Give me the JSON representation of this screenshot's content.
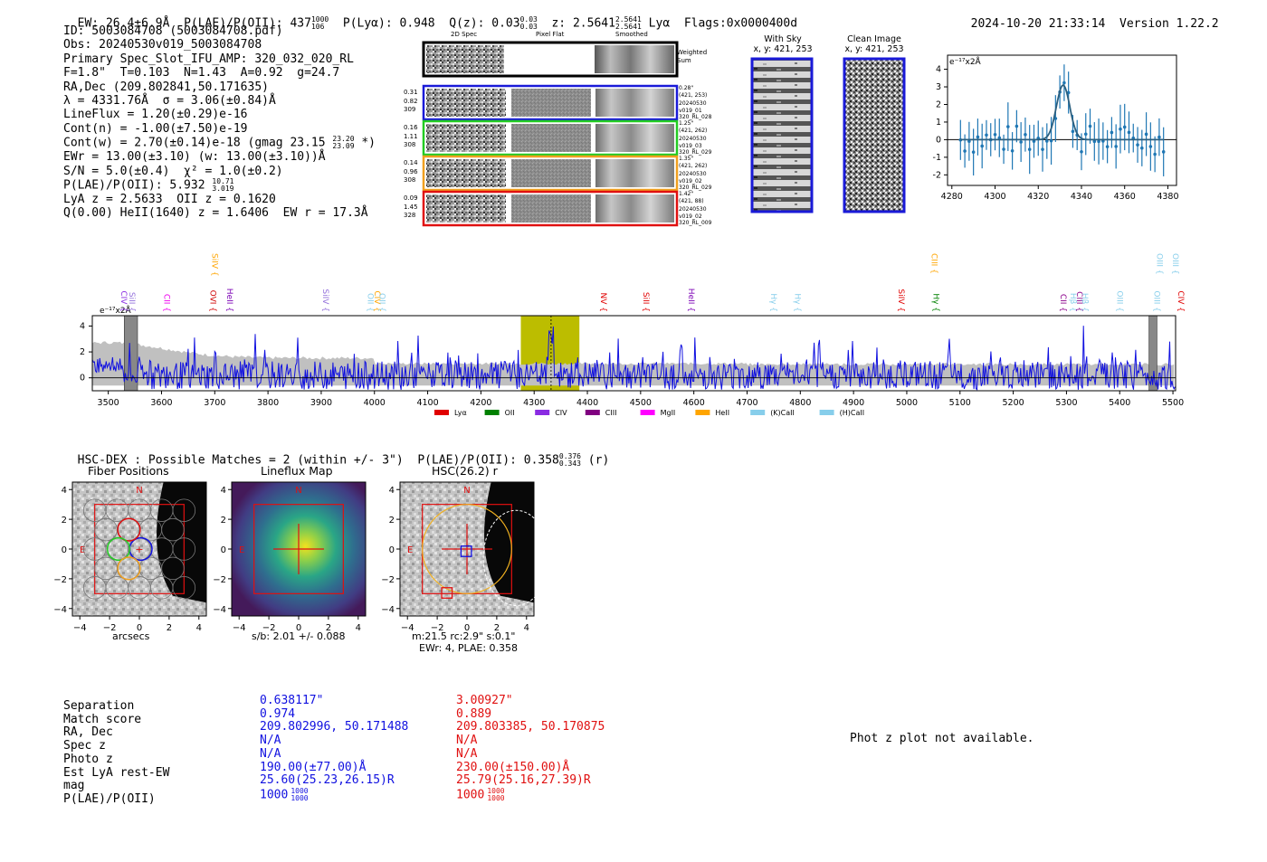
{
  "header": {
    "ew": "EW: 26.4±6.9Å",
    "plae": "P(LAE)/P(OII): 437",
    "plae_hi": "1000",
    "plae_lo": "106",
    "plya": "P(Lyα): 0.948",
    "qz": "Q(z): 0.03",
    "qz_hi": "0.03",
    "qz_lo": "0.03",
    "z": "z: 2.5641",
    "z_hi": "2.5641",
    "z_lo": "2.5641",
    "line": "Lyα",
    "flags": "Flags:0x0000400d",
    "datetime": "2024-10-20 21:33:14",
    "version": "Version 1.22.2"
  },
  "info": {
    "id": "ID: 5003084708 (5003084708.pdf)",
    "obs": "Obs: 20240530v019_5003084708",
    "primary": "Primary Spec_Slot_IFU_AMP: 320_032_020_RL",
    "params": "F=1.8\"  T=0.103  N=1.43  A=0.92  g=24.7",
    "radec": "RA,Dec (209.802841,50.171635)",
    "lambda": "λ = 4331.76Å  σ = 3.06(±0.84)Å",
    "lineflux": "LineFlux = 1.20(±0.29)e-16",
    "contn": "Cont(n) = -1.00(±7.50)e-19",
    "contw": "Cont(w) = 2.70(±0.14)e-18 (gmag 23.15",
    "contw_hi": "23.20",
    "contw_lo": "23.09",
    "contw_end": "*)",
    "ewr": "EWr = 13.00(±3.10) (w: 13.00(±3.10))Å",
    "sn": "S/N = 5.0(±0.4)  χ² = 1.0(±0.2)",
    "plae": "P(LAE)/P(OII): 5.932",
    "plae_hi": "10.71",
    "plae_lo": "3.019",
    "lya": "LyA z = 2.5633  OII z = 0.1620",
    "q": "Q(0.00) HeII(1640) z = 1.6406  EW r = 17.3Å"
  },
  "cutouts": {
    "col_2d": "2D Spec",
    "col_flat": "Pixel Flat",
    "col_smooth": "Smoothed",
    "sum_label_1": "Weighted",
    "sum_label_2": "Sum",
    "rows": [
      {
        "l1": "0.31",
        "l2": "0.82",
        "l3": "309",
        "r1": "0.28\"",
        "r2": "(421, 253)",
        "r3": "20240530",
        "r4": "v019_01",
        "r5": "320_RL_028",
        "color": "#1a1ad8"
      },
      {
        "l1": "0.16",
        "l2": "1.11",
        "l3": "308",
        "r1": "1.25\"",
        "r2": "(421, 262)",
        "r3": "20240530",
        "r4": "v019_03",
        "r5": "320_RL_029",
        "color": "#22cc22"
      },
      {
        "l1": "0.14",
        "l2": "0.96",
        "l3": "308",
        "r1": "1.35\"",
        "r2": "(421, 262)",
        "r3": "20240530",
        "r4": "v019_02",
        "r5": "320_RL_029",
        "color": "#f0a020"
      },
      {
        "l1": "0.09",
        "l2": "1.45",
        "l3": "328",
        "r1": "1.42\"",
        "r2": "(421, 88)",
        "r3": "20240530",
        "r4": "v019_02",
        "r5": "320_RL_009",
        "color": "#e01010"
      }
    ]
  },
  "sky": {
    "with_sky": "With Sky",
    "with_sky_xy": "x, y: 421, 253",
    "clean": "Clean Image",
    "clean_xy": "x, y: 421, 253"
  },
  "zoom": {
    "ylabel": "e⁻¹⁷x2Å",
    "xticks": [
      "4280",
      "4300",
      "4320",
      "4340",
      "4360",
      "4380"
    ],
    "yticks": [
      "4",
      "3",
      "2",
      "1",
      "0",
      "-1",
      "-2"
    ],
    "color": "#1f77b4"
  },
  "spectrum": {
    "ylabel": "e⁻¹⁷x2Å",
    "xticks": [
      "3500",
      "3600",
      "3700",
      "3800",
      "3900",
      "4000",
      "4100",
      "4200",
      "4300",
      "4400",
      "4500",
      "4600",
      "4700",
      "4800",
      "4900",
      "5000",
      "5100",
      "5200",
      "5300",
      "5400",
      "5500"
    ],
    "yticks": [
      "4",
      "2",
      "0"
    ],
    "line_labels_low": [
      {
        "t": "CIV",
        "w": 3519,
        "c": "#8a2be2"
      },
      {
        "t": "SiII",
        "w": 3535,
        "c": "#9370db"
      },
      {
        "t": "CII",
        "w": 3600,
        "c": "#ee00ee"
      },
      {
        "t": "OVI",
        "w": 3687,
        "c": "#d00000"
      },
      {
        "t": "HeII",
        "w": 3718,
        "c": "#7b00b4"
      },
      {
        "t": "SiIV",
        "w": 3898,
        "c": "#9370db"
      },
      {
        "t": "OII",
        "w": 3983,
        "c": "#87ceeb"
      },
      {
        "t": "CIV",
        "w": 3995,
        "c": "#ffa500"
      },
      {
        "t": "OII",
        "w": 4005,
        "c": "#87ceeb"
      },
      {
        "t": "NV",
        "w": 4420,
        "c": "#e00000"
      },
      {
        "t": "SiII",
        "w": 4500,
        "c": "#e00000"
      },
      {
        "t": "HeII",
        "w": 4585,
        "c": "#7b00b4"
      },
      {
        "t": "Hγ",
        "w": 4740,
        "c": "#87ceeb"
      },
      {
        "t": "Hγ",
        "w": 4785,
        "c": "#87ceeb"
      },
      {
        "t": "SiIV",
        "w": 4980,
        "c": "#e00000"
      },
      {
        "t": "Hγ",
        "w": 5045,
        "c": "#008000"
      },
      {
        "t": "CII",
        "w": 5284,
        "c": "#8b008b"
      },
      {
        "t": "Hβ",
        "w": 5303,
        "c": "#87ceeb"
      },
      {
        "t": "CIII",
        "w": 5315,
        "c": "#8b008b"
      },
      {
        "t": "Hβ",
        "w": 5325,
        "c": "#87ceeb"
      },
      {
        "t": "OIII",
        "w": 5390,
        "c": "#87ceeb"
      },
      {
        "t": "OIII",
        "w": 5460,
        "c": "#87ceeb"
      },
      {
        "t": "CIV",
        "w": 5505,
        "c": "#e00000"
      }
    ],
    "line_labels_high": [
      {
        "t": "SiIV",
        "w": 3690,
        "c": "#ffa500"
      },
      {
        "t": "CIII",
        "w": 5042,
        "c": "#ffa500"
      },
      {
        "t": "OIII",
        "w": 5465,
        "c": "#87ceeb"
      },
      {
        "t": "OIII",
        "w": 5495,
        "c": "#87ceeb"
      }
    ],
    "legend": [
      {
        "label": "Lyα",
        "color": "#e00000"
      },
      {
        "label": "OII",
        "color": "#008000"
      },
      {
        "label": "CIV",
        "color": "#8a2be2"
      },
      {
        "label": "CIII",
        "color": "#800080"
      },
      {
        "label": "MgII",
        "color": "#ff00ff"
      },
      {
        "label": "HeII",
        "color": "#ffa500"
      },
      {
        "label": "(K)CaII",
        "color": "#87ceeb"
      },
      {
        "label": "(H)CaII",
        "color": "#87ceeb"
      }
    ]
  },
  "hsc": {
    "title": "HSC-DEX : Possible Matches = 2 (within +/- 3\")  P(LAE)/P(OII): 0.358",
    "title_hi": "0.376",
    "title_lo": "0.343",
    "title_end": "(r)",
    "panel1_title": "Fiber Positions",
    "panel1_xlabel": "arcsecs",
    "panel2_title": "Lineflux Map",
    "panel2_xlabel": "s/b: 2.01 +/- 0.088",
    "panel3_title": "HSC(26.2) r",
    "panel3_xlabel_1": "m:21.5 rc:2.9\"  s:0.1\"",
    "panel3_xlabel_2": "EWr: 4, PLAE: 0.358",
    "ticks": [
      "4",
      "2",
      "0",
      "−2",
      "−4"
    ],
    "xticks": [
      "−4",
      "−2",
      "0",
      "2",
      "4"
    ],
    "n": "N",
    "e": "E"
  },
  "table": {
    "labels": [
      "Separation",
      "Match score",
      "RA, Dec",
      "Spec z",
      "Photo z",
      "Est LyA rest-EW",
      "mag",
      "P(LAE)/P(OII)"
    ],
    "col1": [
      "0.638117\"",
      "0.974",
      "209.802996, 50.171488",
      "N/A",
      "N/A",
      "190.00(±77.00)Å",
      "25.60(25.23,26.15)R",
      "1000"
    ],
    "col1_plae_hi": "1000",
    "col1_plae_lo": "1000",
    "col2": [
      "3.00927\"",
      "0.889",
      "209.803385, 50.170875",
      "N/A",
      "N/A",
      "230.00(±150.00)Å",
      "25.79(25.16,27.39)R",
      "1000"
    ],
    "col2_plae_hi": "1000",
    "col2_plae_lo": "1000",
    "photz": "Phot z plot not available."
  },
  "colors": {
    "blue": "#1010e0",
    "red": "#e01010",
    "olive": "#bcbd00",
    "gray": "#c0c0c0"
  }
}
